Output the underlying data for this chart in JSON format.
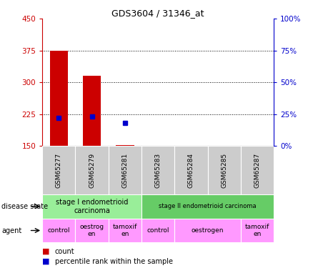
{
  "title": "GDS3604 / 31346_at",
  "samples": [
    "GSM65277",
    "GSM65279",
    "GSM65281",
    "GSM65283",
    "GSM65284",
    "GSM65285",
    "GSM65287"
  ],
  "count_values": [
    375,
    315,
    152,
    150,
    150,
    150,
    150
  ],
  "percentile_values": [
    22,
    23,
    18,
    null,
    null,
    null,
    null
  ],
  "ylim_left": [
    150,
    450
  ],
  "ylim_right": [
    0,
    100
  ],
  "yticks_left": [
    150,
    225,
    300,
    375,
    450
  ],
  "yticks_right": [
    0,
    25,
    50,
    75,
    100
  ],
  "bar_color": "#cc0000",
  "dot_color": "#0000cc",
  "tick_color_left": "#cc0000",
  "tick_color_right": "#0000cc",
  "disease_state_groups": [
    {
      "label": "stage I endometrioid\ncarcinoma",
      "start": 0,
      "end": 3,
      "color": "#99ee99"
    },
    {
      "label": "stage II endometrioid carcinoma",
      "start": 3,
      "end": 7,
      "color": "#66cc66"
    }
  ],
  "agent_groups": [
    {
      "label": "control",
      "start": 0,
      "end": 1,
      "color": "#ff99ff"
    },
    {
      "label": "oestrog\nen",
      "start": 1,
      "end": 2,
      "color": "#ff99ff"
    },
    {
      "label": "tamoxif\nen",
      "start": 2,
      "end": 3,
      "color": "#ff99ff"
    },
    {
      "label": "control",
      "start": 3,
      "end": 4,
      "color": "#ff99ff"
    },
    {
      "label": "oestrogen",
      "start": 4,
      "end": 6,
      "color": "#ff99ff"
    },
    {
      "label": "tamoxif\nen",
      "start": 6,
      "end": 7,
      "color": "#ff99ff"
    }
  ],
  "background_color": "#ffffff"
}
